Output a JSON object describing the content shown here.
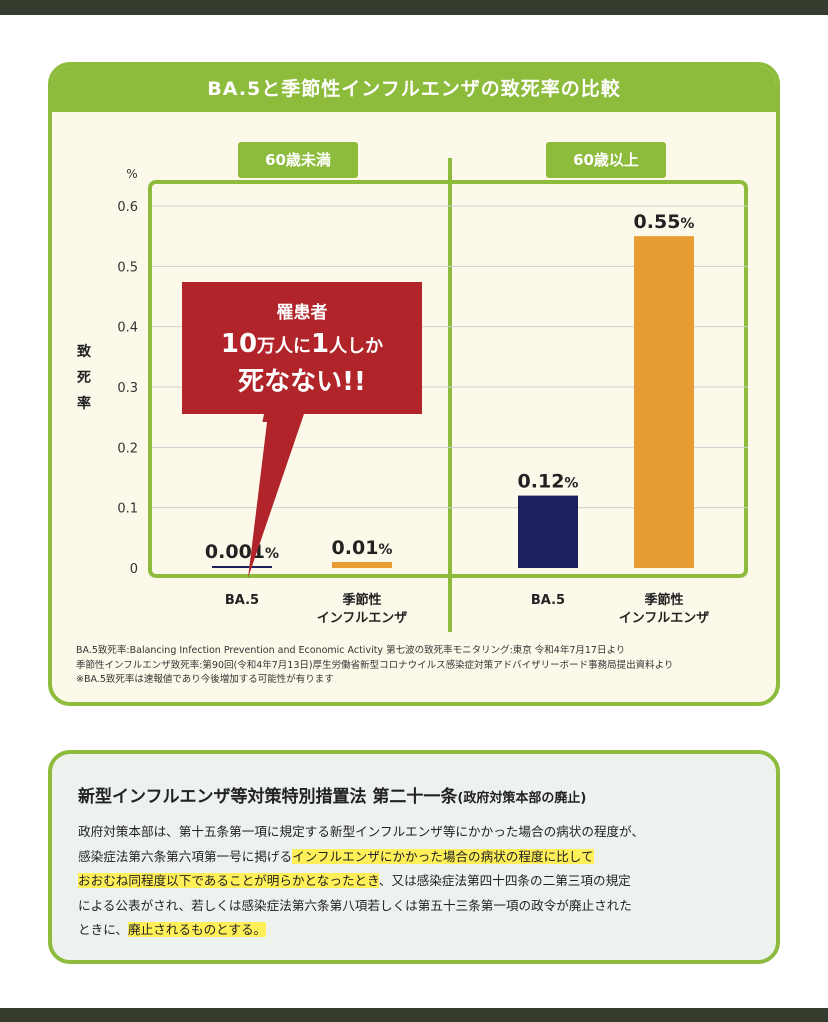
{
  "chart_data": {
    "type": "bar",
    "title": "BA.5と季節性インフルエンザの致死率の比較",
    "ylabel": "致死率",
    "yunit": "%",
    "ylim": [
      0,
      0.6
    ],
    "yticks": [
      "0",
      "0.1",
      "0.2",
      "0.3",
      "0.4",
      "0.5",
      "0.6"
    ],
    "groups": [
      {
        "label": "60歳未満",
        "bars": [
          {
            "category": "BA.5",
            "category_line2": "",
            "value": 0.001,
            "label": "0.001",
            "color": "#1d1f5e"
          },
          {
            "category": "季節性",
            "category_line2": "インフルエンザ",
            "value": 0.01,
            "label": "0.01",
            "color": "#e89d34"
          }
        ]
      },
      {
        "label": "60歳以上",
        "bars": [
          {
            "category": "BA.5",
            "category_line2": "",
            "value": 0.12,
            "label": "0.12",
            "color": "#1d1f5e"
          },
          {
            "category": "季節性",
            "category_line2": "インフルエンザ",
            "value": 0.55,
            "label": "0.55",
            "color": "#e89d34"
          }
        ]
      }
    ],
    "value_suffix": "%",
    "callout": {
      "line1": "罹患者",
      "line2_num1": "10",
      "line2_text1": "万人に",
      "line2_num2": "1",
      "line2_text2": "人しか",
      "line3": "死なない!!"
    }
  },
  "notes": [
    "BA.5致死率:Balancing Infection Prevention and Economic Activity 第七波の致死率モニタリング:東京 令和4年7月17日より",
    "季節性インフルエンザ致死率:第90回(令和4年7月13日)厚生労働省新型コロナウイルス感染症対策アドバイザリーボード事務局提出資料より",
    "※BA.5致死率は速報値であり今後増加する可能性が有ります"
  ],
  "law": {
    "title": "新型インフルエンザ等対策特別措置法 第二十一条",
    "title_paren": "(政府対策本部の廃止)",
    "p1": "政府対策本部は、第十五条第一項に規定する新型インフルエンザ等にかかった場合の病状の程度が、",
    "p2a": "感染症法第六条第六項第一号に掲げる",
    "p2b": "インフルエンザにかかった場合の病状の程度に比して",
    "p3a": "おおむね同程度以下であることが明らかとなったとき",
    "p3b": "、又は感染症法第四十四条の二第三項の規定",
    "p4": "による公表がされ、若しくは感染症法第六条第八項若しくは第五十三条第一項の政令が廃止された",
    "p5a": "ときに、",
    "p5b": "廃止されるものとする。"
  },
  "colors": {
    "accent_green": "#8dbb3c",
    "navy": "#1d1f5e",
    "orange": "#e89d34",
    "callout_red": "#b1242a",
    "highlight": "#fff05a",
    "frame_dark": "#353b2d"
  }
}
